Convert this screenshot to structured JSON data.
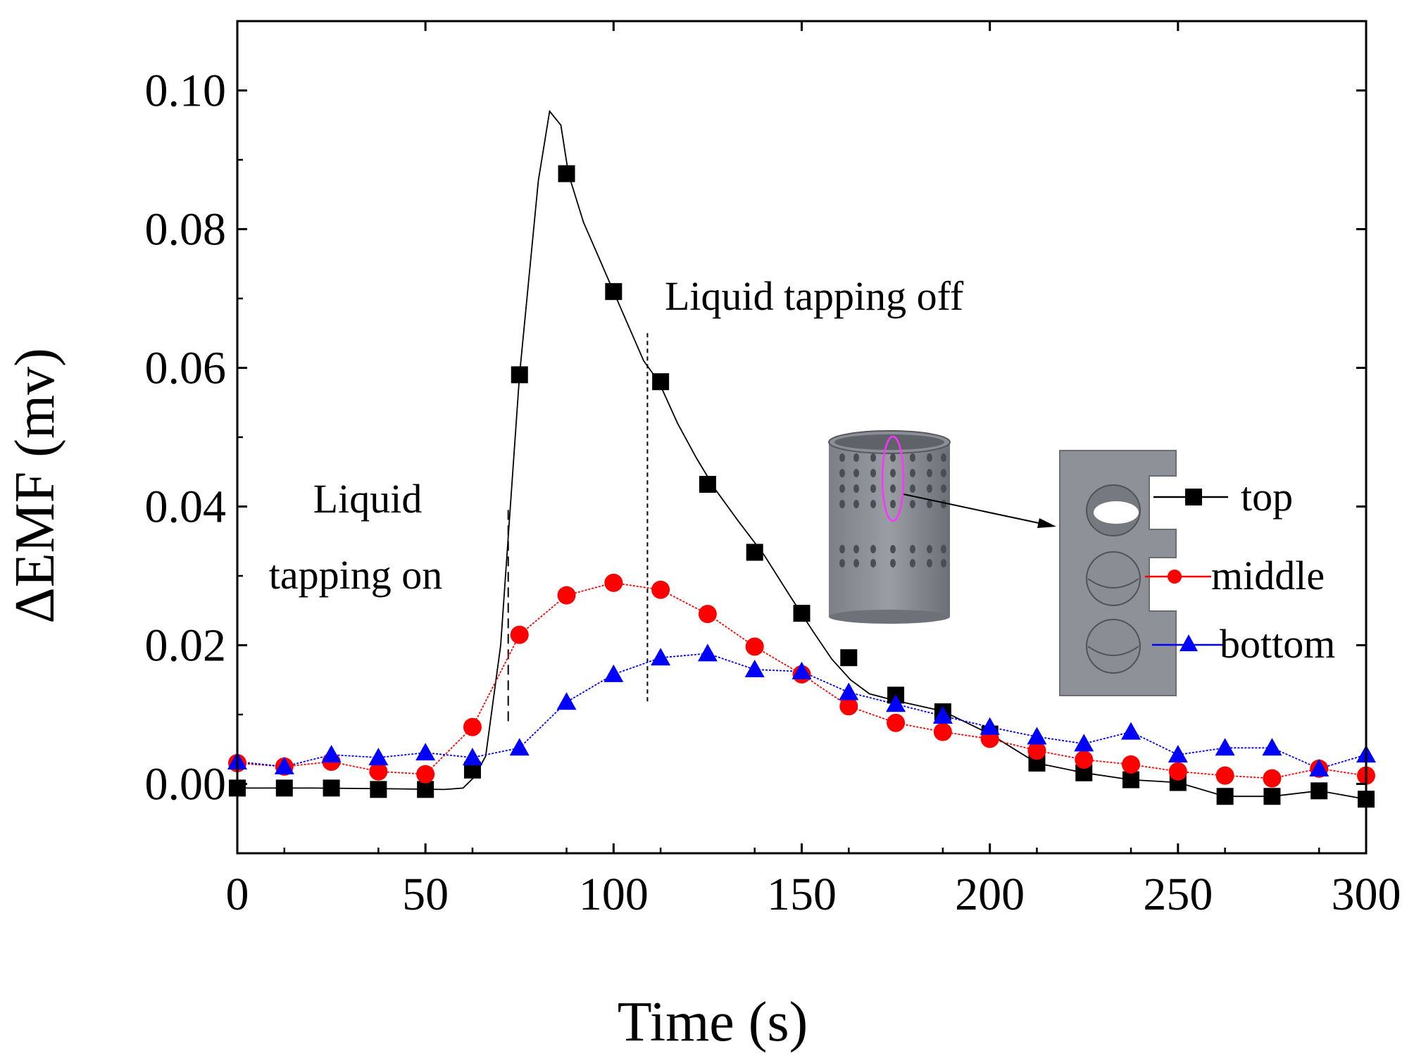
{
  "chart_data": {
    "type": "line",
    "xlabel": "Time (s)",
    "ylabel": "ΔEMF (mv)",
    "xlim": [
      0,
      300
    ],
    "ylim": [
      -0.01,
      0.11
    ],
    "xticks": [
      0,
      50,
      100,
      150,
      200,
      250,
      300
    ],
    "xtick_labels": [
      "0",
      "50",
      "100",
      "150",
      "200",
      "250",
      "300"
    ],
    "yticks": [
      0.0,
      0.02,
      0.04,
      0.06,
      0.08,
      0.1
    ],
    "ytick_labels": [
      "0.00",
      "0.02",
      "0.04",
      "0.06",
      "0.08",
      "0.10"
    ],
    "grid": false,
    "legend_position": "right",
    "annotations": {
      "tapping_on_line1": "Liquid",
      "tapping_on_line2": "tapping on",
      "tapping_off": "Liquid tapping off"
    },
    "markers": {
      "tapping_on_time": 72,
      "tapping_off_time": 109
    },
    "series": [
      {
        "name": "top",
        "color": "#000000",
        "marker": "square",
        "x": [
          0,
          12.5,
          25,
          37.5,
          50,
          62.5,
          75,
          87.5,
          100,
          112.5,
          125,
          137.5,
          150,
          162.5,
          175,
          187.5,
          200,
          212.5,
          225,
          237.5,
          250,
          262.5,
          275,
          287.5,
          300
        ],
        "values": [
          -0.0006,
          -0.0006,
          -0.0006,
          -0.0008,
          -0.0008,
          0.002,
          0.059,
          0.088,
          0.071,
          0.058,
          0.0432,
          0.0334,
          0.0246,
          0.0182,
          0.0128,
          0.0104,
          0.0072,
          0.003,
          0.0016,
          0.0006,
          0.0002,
          -0.0018,
          -0.0018,
          -0.001,
          -0.0022
        ],
        "line_x": [
          0,
          20,
          40,
          55,
          60,
          63,
          66,
          70,
          75,
          80,
          83,
          86,
          88,
          92,
          96,
          100,
          104,
          108,
          112,
          117,
          122,
          127,
          133,
          140,
          147,
          153,
          158,
          163,
          168,
          175,
          187.5,
          200,
          212.5,
          225,
          237.5,
          250,
          262.5,
          275,
          287.5,
          300
        ],
        "line_values": [
          -0.0006,
          -0.0006,
          -0.0007,
          -0.0008,
          -0.0006,
          0.001,
          0.004,
          0.02,
          0.059,
          0.087,
          0.097,
          0.095,
          0.088,
          0.081,
          0.076,
          0.071,
          0.066,
          0.061,
          0.058,
          0.052,
          0.047,
          0.0425,
          0.038,
          0.033,
          0.027,
          0.022,
          0.018,
          0.015,
          0.013,
          0.012,
          0.0105,
          0.0072,
          0.003,
          0.0016,
          0.0006,
          0.0002,
          -0.0018,
          -0.0018,
          -0.001,
          -0.0022
        ]
      },
      {
        "name": "middle",
        "color": "#ff0000",
        "marker": "circle",
        "x": [
          0,
          12.5,
          25,
          37.5,
          50,
          62.5,
          75,
          87.5,
          100,
          112.5,
          125,
          137.5,
          150,
          162.5,
          175,
          187.5,
          200,
          212.5,
          225,
          237.5,
          250,
          262.5,
          275,
          287.5,
          300
        ],
        "values": [
          0.003,
          0.0025,
          0.0032,
          0.0018,
          0.0014,
          0.0082,
          0.0215,
          0.0272,
          0.029,
          0.028,
          0.0245,
          0.0198,
          0.0158,
          0.0112,
          0.0088,
          0.0075,
          0.0065,
          0.0048,
          0.0035,
          0.0028,
          0.0018,
          0.0012,
          0.0008,
          0.0022,
          0.0012
        ]
      },
      {
        "name": "bottom",
        "color": "#0000ff",
        "marker": "triangle",
        "x": [
          0,
          12.5,
          25,
          37.5,
          50,
          62.5,
          75,
          87.5,
          100,
          112.5,
          125,
          137.5,
          150,
          162.5,
          175,
          187.5,
          200,
          212.5,
          225,
          237.5,
          250,
          262.5,
          275,
          287.5,
          300
        ],
        "values": [
          0.0032,
          0.0025,
          0.0042,
          0.0038,
          0.0045,
          0.0038,
          0.0052,
          0.0118,
          0.0158,
          0.0182,
          0.0188,
          0.0165,
          0.0162,
          0.0132,
          0.0115,
          0.0098,
          0.0082,
          0.0068,
          0.0058,
          0.0075,
          0.0042,
          0.0052,
          0.0052,
          0.0022,
          0.0042
        ]
      }
    ]
  }
}
